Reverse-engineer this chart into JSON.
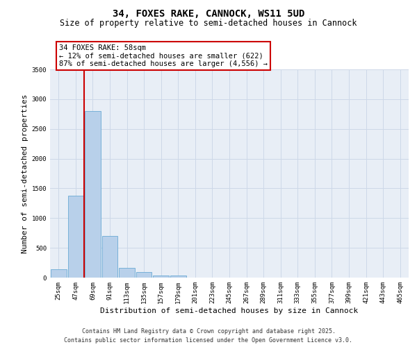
{
  "title": "34, FOXES RAKE, CANNOCK, WS11 5UD",
  "subtitle": "Size of property relative to semi-detached houses in Cannock",
  "xlabel": "Distribution of semi-detached houses by size in Cannock",
  "ylabel": "Number of semi-detached properties",
  "categories": [
    "25sqm",
    "47sqm",
    "69sqm",
    "91sqm",
    "113sqm",
    "135sqm",
    "157sqm",
    "179sqm",
    "201sqm",
    "223sqm",
    "245sqm",
    "267sqm",
    "289sqm",
    "311sqm",
    "333sqm",
    "355sqm",
    "377sqm",
    "399sqm",
    "421sqm",
    "443sqm",
    "465sqm"
  ],
  "values": [
    140,
    1380,
    2800,
    700,
    160,
    90,
    35,
    30,
    0,
    0,
    0,
    0,
    0,
    0,
    0,
    0,
    0,
    0,
    0,
    0,
    0
  ],
  "bar_color": "#b8d0ea",
  "bar_edge_color": "#6aaad4",
  "grid_color": "#cdd8e8",
  "background_color": "#e8eef6",
  "vline_color": "#cc0000",
  "vline_x": 1.5,
  "annotation_text": "34 FOXES RAKE: 58sqm\n← 12% of semi-detached houses are smaller (622)\n87% of semi-detached houses are larger (4,556) →",
  "annotation_box_edgecolor": "#cc0000",
  "ylim": [
    0,
    3500
  ],
  "yticks": [
    0,
    500,
    1000,
    1500,
    2000,
    2500,
    3000,
    3500
  ],
  "footer": "Contains HM Land Registry data © Crown copyright and database right 2025.\nContains public sector information licensed under the Open Government Licence v3.0.",
  "title_fontsize": 10,
  "subtitle_fontsize": 8.5,
  "axis_label_fontsize": 8,
  "tick_fontsize": 6.5,
  "annotation_fontsize": 7.5,
  "footer_fontsize": 6
}
